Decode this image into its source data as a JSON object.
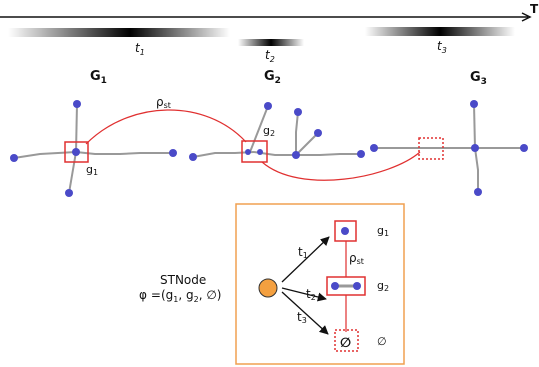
{
  "timeline": {
    "axis_label": "T",
    "periods": [
      {
        "main": "t",
        "sub": "1"
      },
      {
        "main": "t",
        "sub": "2"
      },
      {
        "main": "t",
        "sub": "3"
      }
    ]
  },
  "graphs": [
    {
      "main": "G",
      "sub": "1"
    },
    {
      "main": "G",
      "sub": "2"
    },
    {
      "main": "G",
      "sub": "3"
    }
  ],
  "labels": {
    "rho": {
      "main": "ρ",
      "sub": "st"
    },
    "g1": {
      "main": "g",
      "sub": "1"
    },
    "g2": {
      "main": "g",
      "sub": "2"
    }
  },
  "stnode": {
    "title": "STNode",
    "phi": "φ",
    "equals": "=(g",
    "sub1": "1",
    "sep1": ", g",
    "sub2": "2",
    "tail": ", ∅)"
  },
  "inset": {
    "edges": [
      {
        "main": "t",
        "sub": "1"
      },
      {
        "main": "t",
        "sub": "2"
      },
      {
        "main": "t",
        "sub": "3"
      }
    ],
    "rho": {
      "main": "ρ",
      "sub": "st"
    },
    "g1": {
      "main": "g",
      "sub": "1"
    },
    "g2": {
      "main": "g",
      "sub": "2"
    },
    "empty_symbol": "∅",
    "empty_label": "∅"
  },
  "colors": {
    "node": "#4a4ac8",
    "edge": "#999999",
    "highlight": "#e03030",
    "stnode": "#f4a040",
    "inset_border": "#f0a050"
  }
}
